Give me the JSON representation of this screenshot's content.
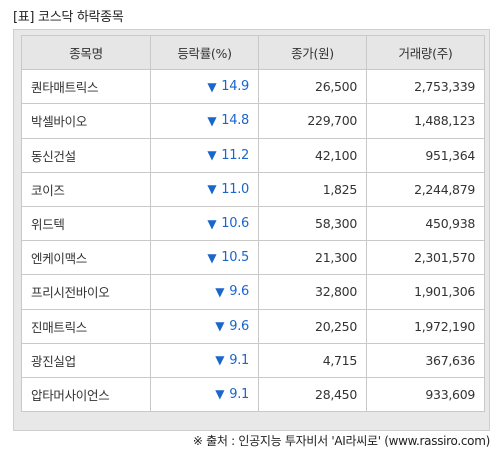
{
  "title": "[표] 코스닥 하락종목",
  "table": {
    "headers": [
      "종목명",
      "등락률(%)",
      "종가(원)",
      "거래량(주)"
    ],
    "down_arrow": "▼",
    "rows": [
      {
        "name": "퀀타매트릭스",
        "rate": "14.9",
        "price": "26,500",
        "volume": "2,753,339"
      },
      {
        "name": "박셀바이오",
        "rate": "14.8",
        "price": "229,700",
        "volume": "1,488,123"
      },
      {
        "name": "동신건설",
        "rate": "11.2",
        "price": "42,100",
        "volume": "951,364"
      },
      {
        "name": "코이즈",
        "rate": "11.0",
        "price": "1,825",
        "volume": "2,244,879"
      },
      {
        "name": "위드텍",
        "rate": "10.6",
        "price": "58,300",
        "volume": "450,938"
      },
      {
        "name": "엔케이맥스",
        "rate": "10.5",
        "price": "21,300",
        "volume": "2,301,570"
      },
      {
        "name": "프리시전바이오",
        "rate": "9.6",
        "price": "32,800",
        "volume": "1,901,306"
      },
      {
        "name": "진매트릭스",
        "rate": "9.6",
        "price": "20,250",
        "volume": "1,972,190"
      },
      {
        "name": "광진실업",
        "rate": "9.1",
        "price": "4,715",
        "volume": "367,636"
      },
      {
        "name": "압타머사이언스",
        "rate": "9.1",
        "price": "28,450",
        "volume": "933,609"
      }
    ]
  },
  "source": "※ 출처 : 인공지능 투자비서 'AI라씨로' (www.rassiro.com)",
  "colors": {
    "down": "#1a66cc",
    "header_bg": "#e6e6e6",
    "frame_bg": "#e8e8e8"
  }
}
